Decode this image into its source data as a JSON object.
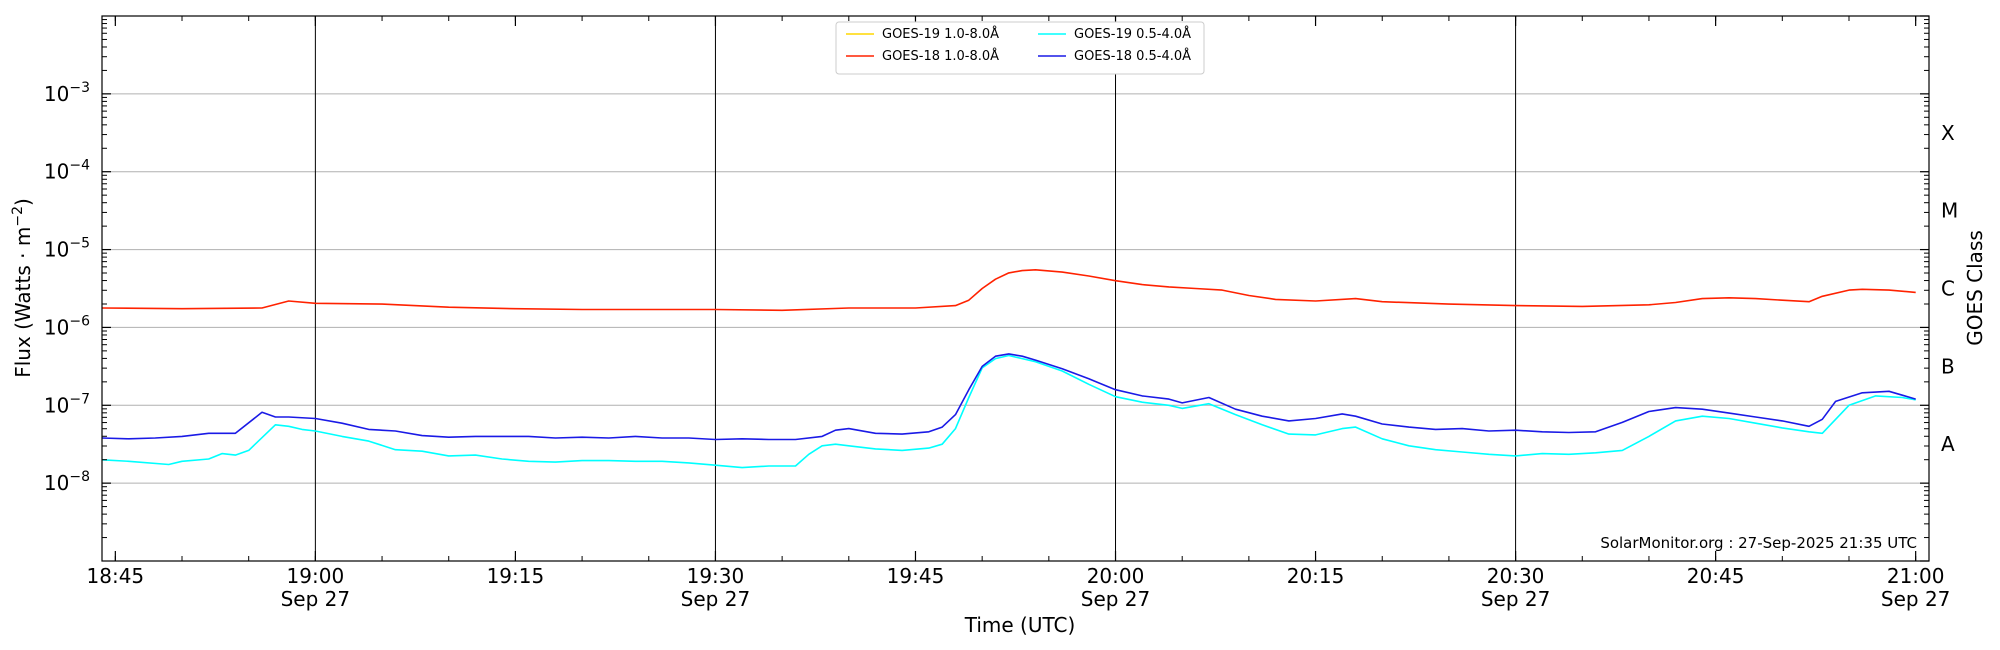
{
  "chart_data": {
    "type": "line",
    "xlabel": "Time (UTC)",
    "ylabel": "Flux (Watts · m",
    "ylabel_sup": "−2",
    "ylabel_close": ")",
    "right_label": "GOES Class",
    "watermark": "SolarMonitor.org : 27-Sep-2025 21:35 UTC",
    "x_range": [
      "2025-09-27 18:44",
      "2025-09-27 21:01"
    ],
    "y_scale": "log",
    "y_range_exp": [
      -9,
      -2
    ],
    "grid": "horizontal at decades",
    "legend_position": "top-center",
    "x_ticks": [
      {
        "t": 45,
        "time": "18:45",
        "date": ""
      },
      {
        "t": 60,
        "time": "19:00",
        "date": "Sep 27"
      },
      {
        "t": 75,
        "time": "19:15",
        "date": ""
      },
      {
        "t": 90,
        "time": "19:30",
        "date": "Sep 27"
      },
      {
        "t": 105,
        "time": "19:45",
        "date": ""
      },
      {
        "t": 120,
        "time": "20:00",
        "date": "Sep 27"
      },
      {
        "t": 135,
        "time": "20:15",
        "date": ""
      },
      {
        "t": 150,
        "time": "20:30",
        "date": "Sep 27"
      },
      {
        "t": 165,
        "time": "20:45",
        "date": ""
      },
      {
        "t": 180,
        "time": "21:00",
        "date": "Sep 27"
      }
    ],
    "vlines_at": [
      60,
      90,
      120,
      150
    ],
    "y_ticks": [
      {
        "exp": -8,
        "base": "10",
        "sup": "−8"
      },
      {
        "exp": -7,
        "base": "10",
        "sup": "−7"
      },
      {
        "exp": -6,
        "base": "10",
        "sup": "−6"
      },
      {
        "exp": -5,
        "base": "10",
        "sup": "−5"
      },
      {
        "exp": -4,
        "base": "10",
        "sup": "−4"
      },
      {
        "exp": -3,
        "base": "10",
        "sup": "−3"
      }
    ],
    "goes_classes": [
      {
        "label": "A",
        "exp": -7.5
      },
      {
        "label": "B",
        "exp": -6.5
      },
      {
        "label": "C",
        "exp": -5.5
      },
      {
        "label": "M",
        "exp": -4.5
      },
      {
        "label": "X",
        "exp": -3.5
      }
    ],
    "series": [
      {
        "name": "GOES-19 1.0-8.0Å",
        "color": "#ffd700",
        "points": []
      },
      {
        "name": "GOES-18 1.0-8.0Å",
        "color": "#ff2200",
        "points": [
          [
            44,
            -5.75
          ],
          [
            50,
            -5.76
          ],
          [
            56,
            -5.75
          ],
          [
            58,
            -5.66
          ],
          [
            60,
            -5.69
          ],
          [
            65,
            -5.7
          ],
          [
            70,
            -5.74
          ],
          [
            75,
            -5.76
          ],
          [
            80,
            -5.77
          ],
          [
            85,
            -5.77
          ],
          [
            90,
            -5.77
          ],
          [
            95,
            -5.78
          ],
          [
            100,
            -5.75
          ],
          [
            105,
            -5.75
          ],
          [
            108,
            -5.72
          ],
          [
            109,
            -5.65
          ],
          [
            110,
            -5.5
          ],
          [
            111,
            -5.38
          ],
          [
            112,
            -5.3
          ],
          [
            113,
            -5.27
          ],
          [
            114,
            -5.26
          ],
          [
            116,
            -5.29
          ],
          [
            118,
            -5.34
          ],
          [
            120,
            -5.4
          ],
          [
            122,
            -5.45
          ],
          [
            124,
            -5.48
          ],
          [
            126,
            -5.5
          ],
          [
            128,
            -5.52
          ],
          [
            130,
            -5.59
          ],
          [
            132,
            -5.64
          ],
          [
            135,
            -5.66
          ],
          [
            138,
            -5.63
          ],
          [
            140,
            -5.67
          ],
          [
            145,
            -5.7
          ],
          [
            150,
            -5.72
          ],
          [
            155,
            -5.73
          ],
          [
            160,
            -5.71
          ],
          [
            162,
            -5.68
          ],
          [
            164,
            -5.63
          ],
          [
            166,
            -5.62
          ],
          [
            168,
            -5.63
          ],
          [
            170,
            -5.65
          ],
          [
            172,
            -5.67
          ],
          [
            173,
            -5.6
          ],
          [
            175,
            -5.52
          ],
          [
            176,
            -5.51
          ],
          [
            178,
            -5.52
          ],
          [
            180,
            -5.55
          ]
        ]
      },
      {
        "name": "GOES-19 0.5-4.0Å",
        "color": "#00ffff",
        "points": [
          [
            44,
            -7.7
          ],
          [
            46,
            -7.72
          ],
          [
            49,
            -7.76
          ],
          [
            50,
            -7.72
          ],
          [
            52,
            -7.69
          ],
          [
            53,
            -7.62
          ],
          [
            54,
            -7.64
          ],
          [
            55,
            -7.58
          ],
          [
            57,
            -7.25
          ],
          [
            58,
            -7.27
          ],
          [
            59,
            -7.31
          ],
          [
            60,
            -7.33
          ],
          [
            62,
            -7.4
          ],
          [
            64,
            -7.46
          ],
          [
            66,
            -7.57
          ],
          [
            68,
            -7.59
          ],
          [
            70,
            -7.65
          ],
          [
            72,
            -7.64
          ],
          [
            74,
            -7.69
          ],
          [
            76,
            -7.72
          ],
          [
            78,
            -7.73
          ],
          [
            80,
            -7.71
          ],
          [
            82,
            -7.71
          ],
          [
            84,
            -7.72
          ],
          [
            86,
            -7.72
          ],
          [
            88,
            -7.74
          ],
          [
            90,
            -7.77
          ],
          [
            92,
            -7.8
          ],
          [
            94,
            -7.78
          ],
          [
            96,
            -7.78
          ],
          [
            97,
            -7.63
          ],
          [
            98,
            -7.52
          ],
          [
            99,
            -7.5
          ],
          [
            100,
            -7.52
          ],
          [
            102,
            -7.56
          ],
          [
            104,
            -7.58
          ],
          [
            106,
            -7.55
          ],
          [
            107,
            -7.5
          ],
          [
            108,
            -7.3
          ],
          [
            109,
            -6.9
          ],
          [
            110,
            -6.52
          ],
          [
            111,
            -6.4
          ],
          [
            112,
            -6.36
          ],
          [
            113,
            -6.4
          ],
          [
            114,
            -6.44
          ],
          [
            116,
            -6.56
          ],
          [
            118,
            -6.73
          ],
          [
            120,
            -6.89
          ],
          [
            122,
            -6.96
          ],
          [
            124,
            -7.0
          ],
          [
            125,
            -7.04
          ],
          [
            127,
            -6.98
          ],
          [
            129,
            -7.12
          ],
          [
            131,
            -7.25
          ],
          [
            133,
            -7.37
          ],
          [
            135,
            -7.38
          ],
          [
            137,
            -7.3
          ],
          [
            138,
            -7.28
          ],
          [
            140,
            -7.43
          ],
          [
            142,
            -7.52
          ],
          [
            144,
            -7.57
          ],
          [
            146,
            -7.6
          ],
          [
            148,
            -7.63
          ],
          [
            150,
            -7.65
          ],
          [
            152,
            -7.62
          ],
          [
            154,
            -7.63
          ],
          [
            156,
            -7.61
          ],
          [
            158,
            -7.58
          ],
          [
            160,
            -7.4
          ],
          [
            162,
            -7.2
          ],
          [
            164,
            -7.14
          ],
          [
            166,
            -7.17
          ],
          [
            168,
            -7.23
          ],
          [
            170,
            -7.29
          ],
          [
            172,
            -7.34
          ],
          [
            173,
            -7.36
          ],
          [
            175,
            -7.0
          ],
          [
            177,
            -6.88
          ],
          [
            179,
            -6.9
          ],
          [
            180,
            -6.93
          ]
        ]
      },
      {
        "name": "GOES-18 0.5-4.0Å",
        "color": "#1a1ae6",
        "points": [
          [
            44,
            -7.42
          ],
          [
            46,
            -7.43
          ],
          [
            48,
            -7.42
          ],
          [
            50,
            -7.4
          ],
          [
            52,
            -7.36
          ],
          [
            54,
            -7.36
          ],
          [
            56,
            -7.09
          ],
          [
            57,
            -7.15
          ],
          [
            58,
            -7.15
          ],
          [
            60,
            -7.17
          ],
          [
            62,
            -7.23
          ],
          [
            64,
            -7.31
          ],
          [
            66,
            -7.33
          ],
          [
            68,
            -7.39
          ],
          [
            70,
            -7.41
          ],
          [
            72,
            -7.4
          ],
          [
            74,
            -7.4
          ],
          [
            76,
            -7.4
          ],
          [
            78,
            -7.42
          ],
          [
            80,
            -7.41
          ],
          [
            82,
            -7.42
          ],
          [
            84,
            -7.4
          ],
          [
            86,
            -7.42
          ],
          [
            88,
            -7.42
          ],
          [
            90,
            -7.44
          ],
          [
            92,
            -7.43
          ],
          [
            94,
            -7.44
          ],
          [
            96,
            -7.44
          ],
          [
            98,
            -7.4
          ],
          [
            99,
            -7.32
          ],
          [
            100,
            -7.3
          ],
          [
            102,
            -7.36
          ],
          [
            104,
            -7.37
          ],
          [
            106,
            -7.34
          ],
          [
            107,
            -7.28
          ],
          [
            108,
            -7.12
          ],
          [
            109,
            -6.8
          ],
          [
            110,
            -6.5
          ],
          [
            111,
            -6.37
          ],
          [
            112,
            -6.34
          ],
          [
            113,
            -6.37
          ],
          [
            114,
            -6.42
          ],
          [
            116,
            -6.53
          ],
          [
            118,
            -6.66
          ],
          [
            120,
            -6.8
          ],
          [
            122,
            -6.88
          ],
          [
            124,
            -6.92
          ],
          [
            125,
            -6.97
          ],
          [
            127,
            -6.9
          ],
          [
            129,
            -7.05
          ],
          [
            131,
            -7.14
          ],
          [
            133,
            -7.2
          ],
          [
            135,
            -7.17
          ],
          [
            137,
            -7.11
          ],
          [
            138,
            -7.14
          ],
          [
            140,
            -7.24
          ],
          [
            142,
            -7.28
          ],
          [
            144,
            -7.31
          ],
          [
            146,
            -7.3
          ],
          [
            148,
            -7.33
          ],
          [
            150,
            -7.32
          ],
          [
            152,
            -7.34
          ],
          [
            154,
            -7.35
          ],
          [
            156,
            -7.34
          ],
          [
            158,
            -7.22
          ],
          [
            160,
            -7.08
          ],
          [
            162,
            -7.03
          ],
          [
            164,
            -7.05
          ],
          [
            166,
            -7.1
          ],
          [
            168,
            -7.15
          ],
          [
            170,
            -7.2
          ],
          [
            172,
            -7.27
          ],
          [
            173,
            -7.18
          ],
          [
            174,
            -6.95
          ],
          [
            176,
            -6.84
          ],
          [
            178,
            -6.82
          ],
          [
            180,
            -6.92
          ]
        ]
      }
    ]
  }
}
